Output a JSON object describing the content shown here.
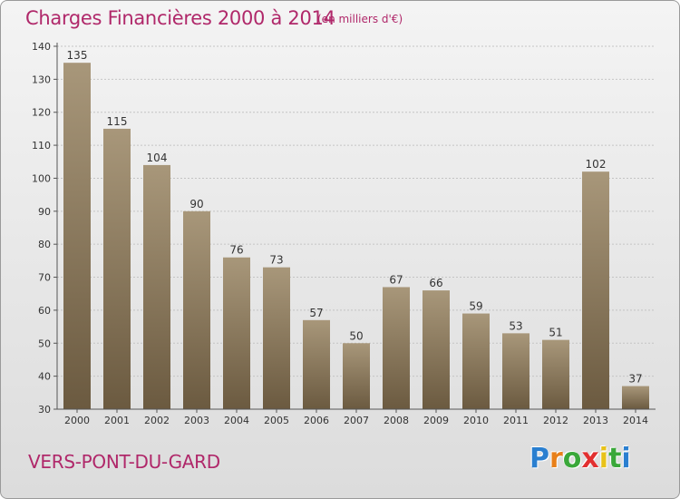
{
  "header": {
    "title": "Charges Financières 2000 à 2014",
    "subtitle": "(en milliers d'€)"
  },
  "footer": {
    "place": "VERS-PONT-DU-GARD",
    "logo": "Proxiti",
    "logo_colors": [
      "#2a7fd0",
      "#e8801a",
      "#3aa83a",
      "#e23030",
      "#e8c21a",
      "#3aa83a",
      "#2a7fd0"
    ]
  },
  "colors": {
    "title": "#b0286a",
    "bar_top": "#a8977a",
    "bar_bottom": "#6b5a40",
    "grid": "#c4c4c4",
    "axis_text": "#333333"
  },
  "chart_data": {
    "type": "bar",
    "categories": [
      "2000",
      "2001",
      "2002",
      "2003",
      "2004",
      "2005",
      "2006",
      "2007",
      "2008",
      "2009",
      "2010",
      "2011",
      "2012",
      "2013",
      "2014"
    ],
    "values": [
      135,
      115,
      104,
      90,
      76,
      73,
      57,
      50,
      67,
      66,
      59,
      53,
      51,
      102,
      37
    ],
    "title": "Charges Financières 2000 à 2014",
    "subtitle": "(en milliers d'€)",
    "xlabel": "",
    "ylabel": "",
    "ylim": [
      30,
      140
    ],
    "yticks": [
      30,
      40,
      50,
      60,
      70,
      80,
      90,
      100,
      110,
      120,
      130,
      140
    ],
    "grid": true,
    "data_labels": true
  }
}
